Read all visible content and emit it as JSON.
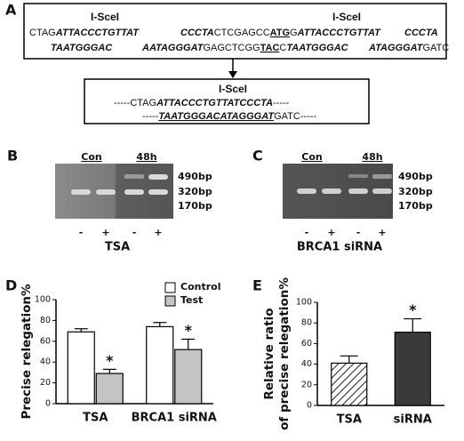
{
  "panel_a": {
    "label": "A",
    "top": {
      "site_labels": [
        "I-SceI",
        "I-SceI"
      ],
      "lines": [
        [
          "CTAG",
          "ATTACCCTGTTAT",
          "CCCTA",
          "CTCGAGCC",
          "ATG",
          "G",
          "ATTACCCTGTTAT",
          "CCCTA"
        ],
        [
          "TAATGGGAC",
          "AATAGGGAT",
          "GAGCTCGG",
          "TAC",
          "C",
          "TAATGGGAC",
          "ATAGGGAT",
          "GATC"
        ]
      ]
    },
    "bottom": {
      "site_label": "I-SceI",
      "lines": [
        [
          "-----CTAG",
          "ATTACCCTGTTATCCCTA",
          "-----"
        ],
        [
          "-----",
          "TAATGGGACATAGGGAT",
          "GATC-----"
        ]
      ]
    }
  },
  "panel_b": {
    "label": "B",
    "groups": [
      "Con",
      "48h"
    ],
    "sizes": [
      "490bp",
      "320bp",
      "170bp"
    ],
    "lanes": [
      "-",
      "+",
      "-",
      "+"
    ],
    "treatment": "TSA"
  },
  "panel_c": {
    "label": "C",
    "groups": [
      "Con",
      "48h"
    ],
    "sizes": [
      "490bp",
      "320bp",
      "170bp"
    ],
    "lanes": [
      "-",
      "+",
      "-",
      "+"
    ],
    "treatment": "BRCA1 siRNA"
  },
  "chart_data": [
    {
      "type": "bar",
      "label": "D",
      "ylabel": [
        "Precise relegation%"
      ],
      "categories": [
        "TSA",
        "BRCA1 siRNA"
      ],
      "series": [
        {
          "name": "Control",
          "color": "#ffffff",
          "values": [
            69,
            74
          ],
          "errors": [
            3,
            4
          ]
        },
        {
          "name": "Test",
          "color": "#c4c4c4",
          "values": [
            29,
            52
          ],
          "errors": [
            4,
            10
          ],
          "markers": [
            "*",
            "*"
          ]
        }
      ],
      "ylim": [
        0,
        100
      ],
      "yticks": [
        0,
        20,
        40,
        60,
        80,
        100
      ],
      "legend": "top-right"
    },
    {
      "type": "bar",
      "label": "E",
      "ylabel": [
        "Relative ratio",
        "of precise relegation%"
      ],
      "categories": [
        "TSA",
        "siRNA"
      ],
      "values": [
        41,
        71
      ],
      "errors": [
        7,
        13
      ],
      "colors": [
        "#ffffff",
        "#3a3a3a"
      ],
      "hatch": [
        true,
        false
      ],
      "markers": [
        null,
        "*"
      ],
      "ylim": [
        0,
        100
      ],
      "yticks": [
        0,
        20,
        40,
        60,
        80,
        100
      ]
    }
  ]
}
